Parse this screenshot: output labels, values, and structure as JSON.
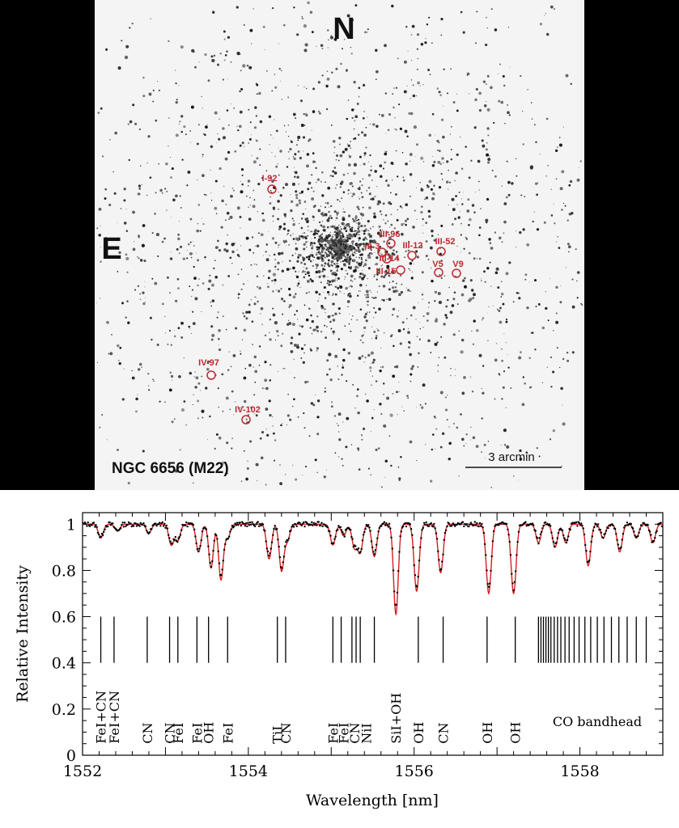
{
  "image_panel": {
    "compass_north": "N",
    "compass_east": "E",
    "cluster_label": "NGC 6656 (M22)",
    "scale_label": "3 arcmin",
    "stars": [
      {
        "id": "I-92"
      },
      {
        "id": "III-96"
      },
      {
        "id": "III-3"
      },
      {
        "id": "III-12"
      },
      {
        "id": "III-14"
      },
      {
        "id": "III-15"
      },
      {
        "id": "III-52"
      },
      {
        "id": "V5"
      },
      {
        "id": "V9"
      },
      {
        "id": "IV-97"
      },
      {
        "id": "IV-102"
      }
    ],
    "marker_color": "#c0282c"
  },
  "chart_data": {
    "type": "line",
    "xlabel": "Wavelength [nm]",
    "ylabel": "Relative Intensity",
    "xlim": [
      1552,
      1559
    ],
    "ylim": [
      0,
      1.05
    ],
    "x_ticks": [
      "1552",
      "1554",
      "1556",
      "1558"
    ],
    "y_ticks": [
      "0",
      "0.2",
      "0.4",
      "0.6",
      "0.8",
      "1"
    ],
    "series": [
      {
        "style": "dots",
        "color": "#000000"
      },
      {
        "style": "line",
        "color": "#d42020"
      }
    ],
    "absorption_features": [
      {
        "wavelength": 1552.22,
        "depth": 0.06,
        "width": 0.03
      },
      {
        "wavelength": 1552.42,
        "depth": 0.03,
        "width": 0.03
      },
      {
        "wavelength": 1552.8,
        "depth": 0.04,
        "width": 0.03
      },
      {
        "wavelength": 1553.07,
        "depth": 0.09,
        "width": 0.03
      },
      {
        "wavelength": 1553.15,
        "depth": 0.07,
        "width": 0.03
      },
      {
        "wavelength": 1553.4,
        "depth": 0.12,
        "width": 0.03
      },
      {
        "wavelength": 1553.55,
        "depth": 0.19,
        "width": 0.028
      },
      {
        "wavelength": 1553.67,
        "depth": 0.24,
        "width": 0.028
      },
      {
        "wavelength": 1553.75,
        "depth": 0.06,
        "width": 0.03
      },
      {
        "wavelength": 1554.25,
        "depth": 0.15,
        "width": 0.03
      },
      {
        "wavelength": 1554.4,
        "depth": 0.2,
        "width": 0.028
      },
      {
        "wavelength": 1554.47,
        "depth": 0.07,
        "width": 0.03
      },
      {
        "wavelength": 1555.02,
        "depth": 0.09,
        "width": 0.03
      },
      {
        "wavelength": 1555.15,
        "depth": 0.05,
        "width": 0.03
      },
      {
        "wavelength": 1555.28,
        "depth": 0.1,
        "width": 0.03
      },
      {
        "wavelength": 1555.35,
        "depth": 0.12,
        "width": 0.03
      },
      {
        "wavelength": 1555.52,
        "depth": 0.14,
        "width": 0.03
      },
      {
        "wavelength": 1555.78,
        "depth": 0.39,
        "width": 0.028
      },
      {
        "wavelength": 1556.03,
        "depth": 0.29,
        "width": 0.03
      },
      {
        "wavelength": 1556.32,
        "depth": 0.21,
        "width": 0.03
      },
      {
        "wavelength": 1556.9,
        "depth": 0.3,
        "width": 0.03
      },
      {
        "wavelength": 1557.2,
        "depth": 0.3,
        "width": 0.03
      },
      {
        "wavelength": 1557.5,
        "depth": 0.08,
        "width": 0.03
      },
      {
        "wavelength": 1557.7,
        "depth": 0.1,
        "width": 0.03
      },
      {
        "wavelength": 1557.83,
        "depth": 0.08,
        "width": 0.03
      },
      {
        "wavelength": 1558.1,
        "depth": 0.18,
        "width": 0.03
      },
      {
        "wavelength": 1558.28,
        "depth": 0.06,
        "width": 0.03
      },
      {
        "wavelength": 1558.48,
        "depth": 0.12,
        "width": 0.03
      },
      {
        "wavelength": 1558.68,
        "depth": 0.06,
        "width": 0.03
      },
      {
        "wavelength": 1558.88,
        "depth": 0.08,
        "width": 0.03
      }
    ],
    "line_markers": [
      1552.22,
      1552.38,
      1552.78,
      1553.05,
      1553.15,
      1553.38,
      1553.52,
      1553.75,
      1554.35,
      1554.45,
      1555.02,
      1555.12,
      1555.25,
      1555.3,
      1555.35,
      1555.52,
      1556.05,
      1556.35,
      1556.88,
      1557.22,
      1557.5,
      1557.53,
      1557.56,
      1557.59,
      1557.62,
      1557.65,
      1557.69,
      1557.73,
      1557.77,
      1557.82,
      1557.87,
      1557.93,
      1557.99,
      1558.06,
      1558.13,
      1558.21,
      1558.29,
      1558.38,
      1558.47,
      1558.57,
      1558.68,
      1558.8
    ],
    "marker_range": [
      0.4,
      0.6
    ],
    "annotations": [
      {
        "text": "FeI+CN",
        "x": 1552.22
      },
      {
        "text": "FeI+CN",
        "x": 1552.38
      },
      {
        "text": "CN",
        "x": 1552.78
      },
      {
        "text": "CN",
        "x": 1553.05
      },
      {
        "text": "FeI",
        "x": 1553.15
      },
      {
        "text": "FeI",
        "x": 1553.38
      },
      {
        "text": "OH",
        "x": 1553.52
      },
      {
        "text": "FeI",
        "x": 1553.75
      },
      {
        "text": "TiI",
        "x": 1554.35
      },
      {
        "text": "CN",
        "x": 1554.45
      },
      {
        "text": "FeI",
        "x": 1555.02
      },
      {
        "text": "FeI",
        "x": 1555.15
      },
      {
        "text": "CN",
        "x": 1555.28
      },
      {
        "text": "NiI",
        "x": 1555.42
      },
      {
        "text": "SiI+OH",
        "x": 1555.78
      },
      {
        "text": "OH",
        "x": 1556.05
      },
      {
        "text": "CN",
        "x": 1556.35
      },
      {
        "text": "OH",
        "x": 1556.88
      },
      {
        "text": "OH",
        "x": 1557.22
      }
    ],
    "co_label": "CO bandhead"
  }
}
